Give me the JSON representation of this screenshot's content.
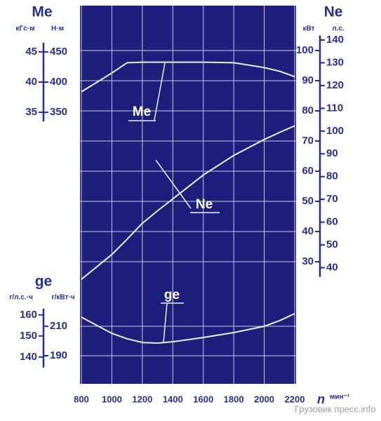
{
  "chart_data": {
    "type": "line",
    "x": [
      800,
      1000,
      1100,
      1200,
      1300,
      1400,
      1600,
      1800,
      2000,
      2100,
      2200
    ],
    "xlim": [
      800,
      2200
    ],
    "xticks": [
      800,
      1000,
      1200,
      1400,
      1600,
      1800,
      2000,
      2200
    ],
    "x_label": "n",
    "x_unit": "мин⁻¹",
    "grid": true,
    "background": "#1e1f7c",
    "axes": [
      {
        "title": "Me",
        "scales": [
          {
            "unit": "кГс·м",
            "lim": [
              33.5,
              46.5
            ],
            "ticks": [
              35,
              40,
              45
            ]
          },
          {
            "unit": "Н·м",
            "lim": [
              335,
              465
            ],
            "ticks": [
              350,
              400,
              450
            ]
          }
        ]
      },
      {
        "title": "Ne",
        "scales": [
          {
            "unit": "кВт",
            "lim": [
              25,
              105
            ],
            "ticks": [
              30,
              40,
              50,
              60,
              70,
              80,
              90,
              100
            ]
          },
          {
            "unit": "л.с.",
            "lim": [
              36,
              142
            ],
            "ticks": [
              40,
              50,
              60,
              70,
              80,
              90,
              100,
              110,
              120,
              130,
              140
            ]
          }
        ]
      },
      {
        "title": "ge",
        "scales": [
          {
            "unit": "г/л.с.·ч",
            "lim": [
              135,
              163
            ],
            "ticks": [
              140,
              150,
              160
            ]
          },
          {
            "unit": "г/кВт·ч",
            "lim": [
              182,
              222
            ],
            "ticks": [
              190,
              210
            ]
          }
        ]
      }
    ],
    "series": [
      {
        "name": "Me",
        "color": "#f0f0f8",
        "axis": 0,
        "values": [
          384,
          415,
          432,
          433,
          433,
          433,
          433,
          432,
          424,
          418,
          409
        ]
      },
      {
        "name": "Ne",
        "color": "#f0f0f8",
        "axis": 1,
        "values": [
          34.9,
          45.8,
          52.5,
          59.5,
          65,
          70.2,
          80.7,
          89.3,
          96.3,
          99.4,
          102.3
        ]
      },
      {
        "name": "ge",
        "color": "#f0f0f8",
        "axis": 2,
        "values": [
          216.2,
          205.2,
          201.5,
          199,
          198.6,
          199.5,
          202.4,
          205.7,
          210,
          213.8,
          218.6
        ]
      }
    ],
    "watermark": "Грузовик пресс.info"
  }
}
